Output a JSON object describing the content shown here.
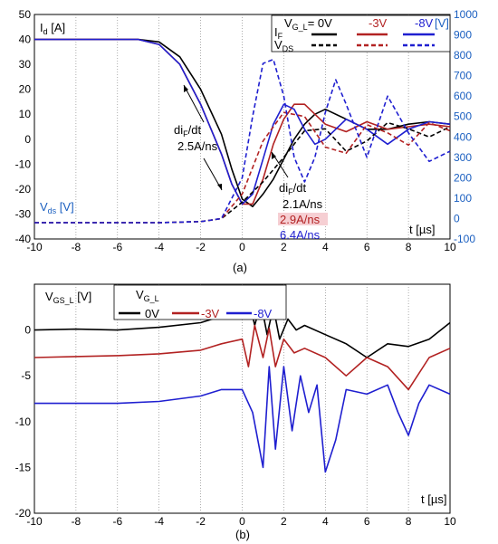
{
  "chart_data": [
    {
      "type": "line",
      "panel_label": "(a)",
      "ylabel_left": "I",
      "ylabel_left_sub": "d",
      "ylabel_left_unit": " [A]",
      "ylabel_right": "[V]",
      "vds_label": "V",
      "vds_label_sub": "ds",
      "vds_label_unit": " [V]",
      "xlabel": "t [µs]",
      "xlim": [
        -10,
        10
      ],
      "ylim_left": [
        -40,
        50
      ],
      "ylim_right": [
        -100,
        1000
      ],
      "x_ticks": [
        "-10",
        "-8",
        "-6",
        "-4",
        "-2",
        "0",
        "2",
        "4",
        "6",
        "8",
        "10"
      ],
      "y_ticks_left": [
        "-40",
        "-30",
        "-20",
        "-10",
        "0",
        "10",
        "20",
        "30",
        "40",
        "50"
      ],
      "y_ticks_right": [
        "-100",
        "0",
        "100",
        "200",
        "300",
        "400",
        "500",
        "600",
        "700",
        "800",
        "900",
        "1000"
      ],
      "grid": true,
      "legend": {
        "position": "top-right",
        "header": "V",
        "header_sub": "G_L",
        "header_eq": "= 0V",
        "col2": "-3V",
        "col3": "-8V",
        "row1": "I",
        "row1_sub": "F",
        "row2": "V",
        "row2_sub": "DS"
      },
      "annotations": {
        "left_rate_1": "di",
        "left_rate_1_sub": "F",
        "left_rate_1_tail": "/dt",
        "left_rate_2": "2.5A/ns",
        "right_rate_1": "di",
        "right_rate_1_sub": "F",
        "right_rate_1_tail": "/dt",
        "rate_0v": "2.1A/ns",
        "rate_m3v": "2.9A/ns",
        "rate_m8v": "6.4A/ns"
      },
      "series": [
        {
          "name": "I_F 0V",
          "color": "#000000",
          "dash": "solid",
          "axis": "left",
          "points": [
            [
              -10,
              40
            ],
            [
              -5,
              40
            ],
            [
              -4,
              39
            ],
            [
              -3,
              33
            ],
            [
              -2,
              20
            ],
            [
              -1,
              2
            ],
            [
              -0.5,
              -12
            ],
            [
              0,
              -24
            ],
            [
              0.5,
              -27
            ],
            [
              1,
              -22
            ],
            [
              1.5,
              -16
            ],
            [
              2,
              -8
            ],
            [
              2.5,
              0
            ],
            [
              3,
              6
            ],
            [
              3.5,
              10
            ],
            [
              4,
              12
            ],
            [
              5,
              8
            ],
            [
              6,
              4
            ],
            [
              7,
              4
            ],
            [
              8,
              6
            ],
            [
              9,
              7
            ],
            [
              10,
              6
            ]
          ]
        },
        {
          "name": "I_F -3V",
          "color": "#b22222",
          "dash": "solid",
          "axis": "left",
          "points": [
            [
              -10,
              40
            ],
            [
              -5,
              40
            ],
            [
              -4,
              38
            ],
            [
              -3,
              30
            ],
            [
              -2,
              14
            ],
            [
              -1,
              -6
            ],
            [
              -0.5,
              -18
            ],
            [
              0,
              -26
            ],
            [
              0.5,
              -26
            ],
            [
              1,
              -16
            ],
            [
              1.5,
              -2
            ],
            [
              2,
              8
            ],
            [
              2.5,
              14
            ],
            [
              3,
              14
            ],
            [
              3.5,
              10
            ],
            [
              4,
              6
            ],
            [
              5,
              3
            ],
            [
              6,
              7
            ],
            [
              7,
              4
            ],
            [
              8,
              5
            ],
            [
              9,
              6
            ],
            [
              10,
              5
            ]
          ]
        },
        {
          "name": "I_F -8V",
          "color": "#1f1fd0",
          "dash": "solid",
          "axis": "left",
          "points": [
            [
              -10,
              40
            ],
            [
              -5,
              40
            ],
            [
              -4,
              38
            ],
            [
              -3,
              30
            ],
            [
              -2,
              14
            ],
            [
              -1,
              -6
            ],
            [
              -0.5,
              -18
            ],
            [
              0,
              -26
            ],
            [
              0.5,
              -22
            ],
            [
              1,
              -8
            ],
            [
              1.5,
              6
            ],
            [
              2,
              14
            ],
            [
              2.5,
              12
            ],
            [
              3,
              4
            ],
            [
              3.5,
              -2
            ],
            [
              4,
              0
            ],
            [
              5,
              8
            ],
            [
              6,
              4
            ],
            [
              7,
              -2
            ],
            [
              8,
              4
            ],
            [
              9,
              7
            ],
            [
              10,
              6
            ]
          ]
        },
        {
          "name": "V_DS 0V",
          "color": "#000000",
          "dash": "dashed",
          "axis": "right",
          "points": [
            [
              -10,
              -20
            ],
            [
              -4,
              -20
            ],
            [
              -2,
              -15
            ],
            [
              -1,
              0
            ],
            [
              0,
              80
            ],
            [
              1,
              180
            ],
            [
              2,
              300
            ],
            [
              3,
              430
            ],
            [
              4,
              440
            ],
            [
              5,
              330
            ],
            [
              6,
              380
            ],
            [
              7,
              470
            ],
            [
              8,
              440
            ],
            [
              9,
              400
            ],
            [
              10,
              450
            ]
          ]
        },
        {
          "name": "V_DS -3V",
          "color": "#b22222",
          "dash": "dashed",
          "axis": "right",
          "points": [
            [
              -10,
              -20
            ],
            [
              -4,
              -20
            ],
            [
              -2,
              -15
            ],
            [
              -1,
              0
            ],
            [
              0,
              120
            ],
            [
              1,
              380
            ],
            [
              2,
              520
            ],
            [
              3,
              500
            ],
            [
              4,
              350
            ],
            [
              5,
              320
            ],
            [
              6,
              460
            ],
            [
              7,
              420
            ],
            [
              8,
              360
            ],
            [
              9,
              470
            ],
            [
              10,
              430
            ]
          ]
        },
        {
          "name": "V_DS -8V",
          "color": "#1f1fd0",
          "dash": "dashed",
          "axis": "right",
          "points": [
            [
              -10,
              -20
            ],
            [
              -4,
              -20
            ],
            [
              -2,
              -15
            ],
            [
              -1,
              0
            ],
            [
              0,
              200
            ],
            [
              0.5,
              500
            ],
            [
              1,
              760
            ],
            [
              1.5,
              780
            ],
            [
              2,
              600
            ],
            [
              2.5,
              300
            ],
            [
              3,
              180
            ],
            [
              3.5,
              300
            ],
            [
              4,
              520
            ],
            [
              4.5,
              680
            ],
            [
              5,
              560
            ],
            [
              6,
              300
            ],
            [
              7,
              600
            ],
            [
              8,
              420
            ],
            [
              9,
              280
            ],
            [
              10,
              330
            ]
          ]
        }
      ]
    },
    {
      "type": "line",
      "panel_label": "(b)",
      "ylabel": "V",
      "ylabel_sub": "GS_L",
      "ylabel_unit": " [V]",
      "xlabel": "t [µs]",
      "xlim": [
        -10,
        10
      ],
      "ylim": [
        -20,
        5
      ],
      "x_ticks": [
        "-10",
        "-8",
        "-6",
        "-4",
        "-2",
        "0",
        "2",
        "4",
        "6",
        "8",
        "10"
      ],
      "y_ticks": [
        "-20",
        "-15",
        "-10",
        "-5",
        "0"
      ],
      "grid": true,
      "legend": {
        "position": "top-left",
        "header": "V",
        "header_sub": "G_L",
        "items": [
          "0V",
          "-3V",
          "-8V"
        ]
      },
      "series": [
        {
          "name": "0V",
          "color": "#000000",
          "points": [
            [
              -10,
              0
            ],
            [
              -8,
              0.1
            ],
            [
              -6,
              0
            ],
            [
              -4,
              0.3
            ],
            [
              -2,
              0.8
            ],
            [
              -1,
              1.5
            ],
            [
              -0.5,
              2
            ],
            [
              0,
              1.8
            ],
            [
              0.3,
              3.5
            ],
            [
              0.6,
              0.5
            ],
            [
              0.9,
              3
            ],
            [
              1.2,
              -0.5
            ],
            [
              1.5,
              2.5
            ],
            [
              1.8,
              -1
            ],
            [
              2.2,
              1.2
            ],
            [
              2.6,
              0
            ],
            [
              3,
              0.5
            ],
            [
              4,
              -0.5
            ],
            [
              5,
              -1.5
            ],
            [
              6,
              -3
            ],
            [
              7,
              -1.5
            ],
            [
              8,
              -1.8
            ],
            [
              9,
              -1
            ],
            [
              10,
              0.8
            ]
          ]
        },
        {
          "name": "-3V",
          "color": "#b22222",
          "points": [
            [
              -10,
              -3
            ],
            [
              -8,
              -2.9
            ],
            [
              -6,
              -2.8
            ],
            [
              -4,
              -2.6
            ],
            [
              -2,
              -2.2
            ],
            [
              -1,
              -1.5
            ],
            [
              0,
              -1
            ],
            [
              0.3,
              -4
            ],
            [
              0.6,
              0.5
            ],
            [
              1,
              -3
            ],
            [
              1.3,
              0.2
            ],
            [
              1.6,
              -4
            ],
            [
              2,
              -1
            ],
            [
              2.5,
              -2.5
            ],
            [
              3,
              -2
            ],
            [
              4,
              -3
            ],
            [
              5,
              -5
            ],
            [
              6,
              -3
            ],
            [
              7,
              -4
            ],
            [
              8,
              -6.5
            ],
            [
              9,
              -3
            ],
            [
              10,
              -2
            ]
          ]
        },
        {
          "name": "-8V",
          "color": "#1f1fd0",
          "points": [
            [
              -10,
              -8
            ],
            [
              -8,
              -8
            ],
            [
              -6,
              -8
            ],
            [
              -4,
              -7.8
            ],
            [
              -2,
              -7.2
            ],
            [
              -1,
              -6.5
            ],
            [
              0,
              -6.5
            ],
            [
              0.5,
              -9
            ],
            [
              1,
              -15
            ],
            [
              1.3,
              -4
            ],
            [
              1.6,
              -13
            ],
            [
              2,
              -4
            ],
            [
              2.4,
              -11
            ],
            [
              2.8,
              -5
            ],
            [
              3.2,
              -9
            ],
            [
              3.6,
              -6
            ],
            [
              4,
              -15.5
            ],
            [
              4.5,
              -12
            ],
            [
              5,
              -6.5
            ],
            [
              6,
              -7
            ],
            [
              7,
              -6
            ],
            [
              7.5,
              -9
            ],
            [
              8,
              -11.5
            ],
            [
              8.5,
              -8
            ],
            [
              9,
              -6
            ],
            [
              10,
              -7
            ]
          ]
        }
      ]
    }
  ]
}
